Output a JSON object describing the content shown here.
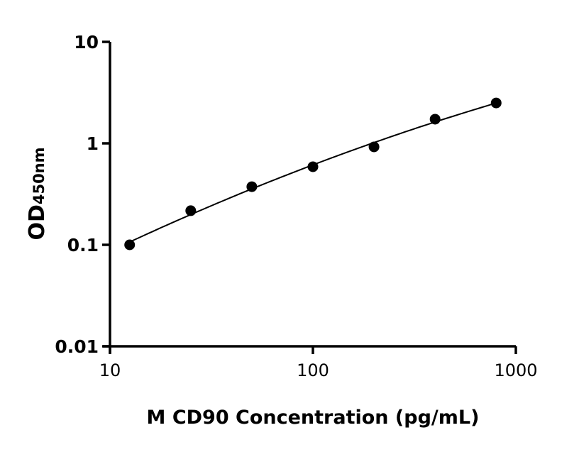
{
  "chart_data": {
    "type": "scatter",
    "title": "",
    "xlabel": "M CD90 Concentration (pg/mL)",
    "ylabel_main": "OD",
    "ylabel_sub": "450nm",
    "x_scale": "log",
    "y_scale": "log",
    "xlim": [
      10,
      1000
    ],
    "ylim": [
      0.01,
      10
    ],
    "x_ticks": [
      10,
      100,
      1000
    ],
    "x_tick_labels": [
      "10",
      "100",
      "1000"
    ],
    "y_ticks": [
      0.01,
      0.1,
      1,
      10
    ],
    "y_tick_labels": [
      "0.01",
      "0.1",
      "1",
      "10"
    ],
    "grid": false,
    "legend": "none",
    "fit_curve": true,
    "colors": {
      "points": "#000000",
      "curve": "#000000"
    },
    "x": [
      12.5,
      25,
      50,
      100,
      200,
      400,
      800
    ],
    "y": [
      0.1,
      0.217,
      0.374,
      0.588,
      0.923,
      1.73,
      2.5
    ]
  }
}
